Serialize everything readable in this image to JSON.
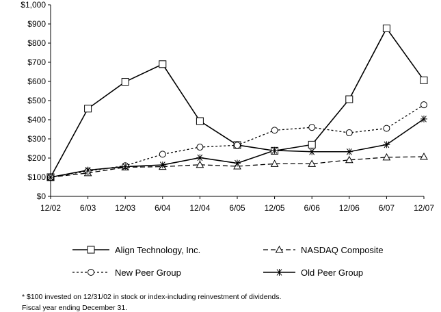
{
  "chart_data": {
    "type": "line",
    "x": [
      "12/02",
      "6/03",
      "12/03",
      "6/04",
      "12/04",
      "6/05",
      "12/05",
      "6/06",
      "12/06",
      "6/07",
      "12/07"
    ],
    "y_ticks": [
      "$0",
      "$100",
      "$200",
      "$300",
      "$400",
      "$500",
      "$600",
      "$700",
      "$800",
      "$900",
      "$1,000"
    ],
    "ylim": [
      0,
      1000
    ],
    "grid": false,
    "legend_position": "bottom",
    "series": [
      {
        "name": "Align Technology, Inc.",
        "marker": "square",
        "dash": "solid",
        "values": [
          100,
          458,
          598,
          690,
          393,
          268,
          238,
          270,
          507,
          877,
          606
        ]
      },
      {
        "name": "NASDAQ Composite",
        "marker": "triangle",
        "dash": "dashed",
        "values": [
          100,
          122,
          152,
          155,
          165,
          157,
          170,
          170,
          190,
          204,
          207
        ]
      },
      {
        "name": "New Peer Group",
        "marker": "circle",
        "dash": "dotted",
        "values": [
          100,
          132,
          160,
          220,
          257,
          267,
          345,
          360,
          332,
          355,
          478
        ]
      },
      {
        "name": "Old Peer Group",
        "marker": "star",
        "dash": "solid",
        "values": [
          100,
          137,
          155,
          164,
          202,
          173,
          240,
          233,
          233,
          270,
          404
        ]
      }
    ]
  },
  "notes": {
    "footnote": "* $100 invested on 12/31/02 in stock or index-including reinvestment of dividends.",
    "fiscal": "Fiscal year ending December 31."
  }
}
